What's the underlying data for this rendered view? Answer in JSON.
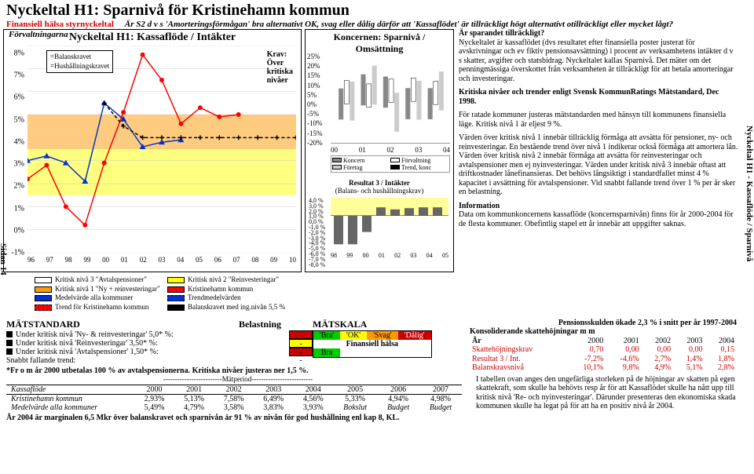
{
  "page_title": "Nyckeltal H1: Sparnivå för Kristinehamn kommun",
  "subtitle_label": "Finansiell hälsa styrnyckeltal",
  "subtitle_question": "Är S2 d v s 'Amorteringsförmågan' bra alternativt OK, svag eller dålig därför att 'Kassaflödet' är tillräckligt högt alternativt otillräckligt eller mycket lågt?",
  "left_chart": {
    "overline": "Förvaltningarna",
    "title": "Nyckeltal H1: Kassaflöde / Intäkter",
    "krav_label": "Krav:\nÖver\nkritiska\nnivåer",
    "y_ticks": [
      "8%",
      "7%",
      "6%",
      "5%",
      "4%",
      "3%",
      "2%",
      "1%",
      "0%",
      "-1%"
    ],
    "x_ticks": [
      "96",
      "97",
      "98",
      "99",
      "00",
      "01",
      "02",
      "03",
      "04",
      "05",
      "06",
      "07",
      "08",
      "09",
      "10"
    ],
    "legend_box": [
      "=Balanskravet",
      "=Hushållningskravet"
    ],
    "legend_bottom": [
      {
        "label": "Kritisk nivå 3 \"Avtalspensioner\"",
        "color": "#ffffff"
      },
      {
        "label": "Kritisk nivå 2 \"Reinvesteringar\"",
        "color": "#ffff00"
      },
      {
        "label": "Kritisk nivå 1 \"Ny + reinvesteringar\"",
        "color": "#ff9900"
      },
      {
        "label": "Kristinehamn kommun",
        "color": "#ff0000",
        "marker": "circle"
      },
      {
        "label": "Medelvärde alla kommuner",
        "color": "#0033cc",
        "marker": "triangle"
      },
      {
        "label": "Trendmedelvärden",
        "color": "#0033cc",
        "dash": true
      },
      {
        "label": "Trend för Kristinehamn kommun",
        "color": "#ff0000",
        "dash": true
      },
      {
        "label": "Balanskravet med ing.nivån 5,5 %",
        "color": "#000000",
        "dash": true,
        "marker": "plus"
      }
    ],
    "series": {
      "kristinehamn": {
        "color": "#ff0000",
        "y": [
          2.2,
          2.8,
          1.0,
          0.2,
          2.9,
          5.1,
          7.6,
          6.5,
          4.6,
          5.3,
          4.9,
          5.0,
          null,
          null,
          null
        ]
      },
      "medel": {
        "color": "#0033cc",
        "y": [
          3.0,
          3.2,
          2.9,
          2.1,
          5.5,
          4.8,
          3.6,
          3.8,
          3.9,
          null,
          null,
          null,
          null,
          null,
          null
        ]
      },
      "balanskrav": {
        "color": "#000000",
        "y": [
          null,
          null,
          null,
          null,
          5.5,
          4.5,
          4.0,
          4.0,
          4.0,
          4.0,
          4.0,
          4.0,
          4.0,
          4.0,
          4.0
        ],
        "dash": true,
        "marker": "plus"
      },
      "krit1": {
        "color": "#ff9900",
        "fill": true,
        "y": 5.0
      },
      "krit2": {
        "color": "#ffff00",
        "fill": true,
        "y": 3.5
      },
      "krit3": {
        "color": "#ffffff",
        "fill": true,
        "y": 1.5
      }
    },
    "ylim": [
      -1,
      8
    ]
  },
  "mid_chart": {
    "title": "Koncernen: Sparnivå / Omsättning",
    "y_ticks_top": [
      "25%",
      "20%",
      "15%",
      "10%",
      "5%",
      "0%",
      "-5%",
      "-10%",
      "-15%",
      "-20%"
    ],
    "x_ticks_top": [
      "00",
      "01",
      "02",
      "03",
      "04"
    ],
    "legend_top": [
      "Koncern",
      "Förvaltning",
      "Företag",
      "Trend, konc"
    ],
    "subheader": "Resultat 3 / Intäkter",
    "subheader2": "(Balans- och hushållningskrav)",
    "y_ticks_bot": [
      "4,0 %",
      "3,0 %",
      "2,0 %",
      "1,0 %",
      "0,0 %",
      "-1,0 %",
      "-2,0 %",
      "-3,0 %",
      "-4,0 %",
      "-5,0 %",
      "-6,0 %",
      "-7,0 %",
      "-8,0 %"
    ],
    "x_ticks_bot": [
      "98",
      "99",
      "00",
      "01",
      "02",
      "03",
      "04",
      "05"
    ]
  },
  "right_text": {
    "h1": "Är sparandet tillräckligt?",
    "p1": "Nyckeltalet är kassaflödet (dvs resultatet efter finansiella poster justerat för avskrivningar och ev fiktiv pensionsavsättning) i procent av verksamhetens intäkter d v s skatter, avgifter och statsbidrag. Nyckeltalet kallas Sparnivå. Det mäter om det penningmässiga överskottet från verksamheten är tillräckligt för att betala amorteringar och investeringar.",
    "h2": "Kritiska nivåer och trender enligt Svensk KommunRatings Mätstandard, Dec 1998.",
    "p2": "För ratade kommuner justeras mätstandarden med hänsyn till kommunens finansiella läge. Kritisk nivå 1 är eljest 9 %.",
    "p3": "Värden över kritisk nivå 1 innebär tillräcklig förmåga att avsätta för pensioner, ny- och reinvesteringar. En bestående trend över nivå 1 indikerar också förmåga att amortera lån. Värden över kritisk nivå 2 innebär förmåga att avsätta för reinvesteringar och avtalspensioner men ej nyinvesteringar. Värden under kritisk nivå 3 innebär oftast att driftkostnader lånefinansieras. Det behövs långsiktigt i standardfallet minst 4 % kapacitet i avsättning för avtalspensioner. Vid snabbt fallande trend över 1 % per år sker en belastning.",
    "h3": "Information",
    "p4": "Data om kommunkoncernens kassaflöde (koncernsparnivån) finns för år 2000-2004 för de flesta kommuner. Obefintlig stapel ett år innebär att uppgifter saknas."
  },
  "side_right": "Nyckeltal H1 - Kassaflöde / Sparnivå",
  "side_left": "Sidan 14",
  "matstandard": {
    "header": "MÄTSTANDARD",
    "col2": "Belastning",
    "rows": [
      {
        "label": "Under kritisk nivå 'Ny- & reinvesteringar' 5,0* %:",
        "val": "-",
        "color": "red"
      },
      {
        "label": "Under kritisk nivå 'Reinvesteringar' 3,50* %:",
        "val": "-",
        "color": "yellow"
      },
      {
        "label": "Under kritisk nivå 'Avtalspensioner' 1,50* %:",
        "val": "-",
        "color": "red"
      },
      {
        "label": "Snabbt fallande trend:",
        "val": "-",
        "color": "none",
        "no_sq": true
      }
    ],
    "foot": "*Fr o m år 2000 utbetalas 100 % av avtalspensionerna. Kritiska nivåer justeras ner 1,5 %."
  },
  "matskala": {
    "header": "MÄTSKALA",
    "cells": [
      "'Bra'",
      "'OK'",
      "'Svag'",
      "'Dålig'"
    ],
    "row2_label": "Finansiell hälsa",
    "row3": "Bra"
  },
  "right_lower": {
    "header": "Pensionsskulden ökade 2,3 % i snitt per år 1997-2004",
    "subheader": "Konsoliderande skattehöjningar m m",
    "years": [
      "2000",
      "2001",
      "2002",
      "2003",
      "2004"
    ],
    "rows": [
      {
        "label": "Skattehöjningskrav",
        "vals": [
          "0,70",
          "0,00",
          "0,00",
          "0,00",
          "0,15"
        ],
        "red": true
      },
      {
        "label": "Resultat 3 / Int.",
        "vals": [
          "-7,2%",
          "-4,6%",
          "2,7%",
          "1,4%",
          "1,8%"
        ],
        "red": true
      },
      {
        "label": "Balanskravsnivå",
        "vals": [
          "10,1%",
          "9,8%",
          "4,9%",
          "5,1%",
          "2,8%"
        ],
        "red": true
      }
    ],
    "para": "I tabellen ovan anges den ungefärliga storleken på de höjningar av skatten på egen skattekraft, som skulle ha behövts resp år för att Kassaflödet skulle ha nått upp till  kritisk nivå 'Re- och nyinvesteringar'. Därunder presenteras den ekonomiska skada kommunen skulle ha legat på för att ha en positiv nivå år 2004."
  },
  "flowtable": {
    "matperiod": "-------------------------Mätperiod--------------------------",
    "col1": "Kassaflöde",
    "years": [
      "2000",
      "2001",
      "2002",
      "2003",
      "2004",
      "2005",
      "2006",
      "2007"
    ],
    "rows": [
      {
        "label": "Kristinehamn kommun",
        "vals": [
          "2,93%",
          "5,13%",
          "7,58%",
          "6,49%",
          "4,56%",
          "5,33%",
          "4,94%",
          "4,98%"
        ]
      },
      {
        "label": "Medelvärde alla kommuner",
        "vals": [
          "5,49%",
          "4,79%",
          "3,58%",
          "3,83%",
          "3,93%",
          "Bokslut",
          "Budget",
          "Budget"
        ],
        "italic_from": 5
      }
    ],
    "foot": "År 2004 är marginalen 6,5 Mkr över balanskravet och sparnivån är 91 % av nivån för god hushållning enl kap 8, KL."
  }
}
